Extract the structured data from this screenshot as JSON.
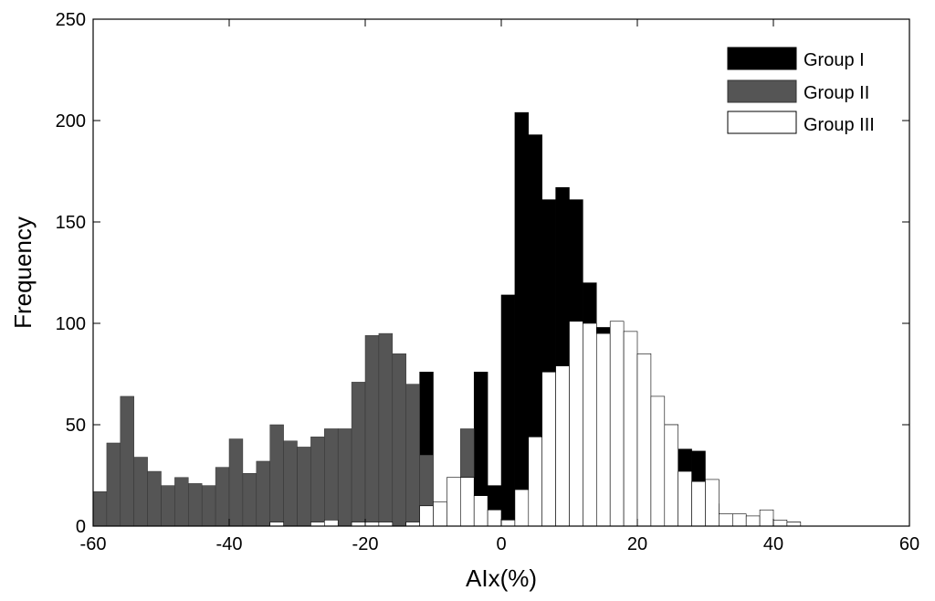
{
  "chart_data": {
    "type": "bar",
    "title": "",
    "xlabel": "AIx(%)",
    "ylabel": "Frequency",
    "xlim": [
      -60,
      60
    ],
    "ylim": [
      0,
      250
    ],
    "xticks": [
      "-60",
      "-40",
      "-20",
      "0",
      "20",
      "40",
      "60"
    ],
    "yticks": [
      "0",
      "50",
      "100",
      "150",
      "200",
      "250"
    ],
    "bin_width": 2,
    "bin_centers": [
      -59,
      -57,
      -55,
      -53,
      -51,
      -49,
      -47,
      -45,
      -43,
      -41,
      -39,
      -37,
      -35,
      -33,
      -31,
      -29,
      -27,
      -25,
      -23,
      -21,
      -19,
      -17,
      -15,
      -13,
      -11,
      -9,
      -7,
      -5,
      -3,
      -1,
      1,
      3,
      5,
      7,
      9,
      11,
      13,
      15,
      17,
      19,
      21,
      23,
      25,
      27,
      29,
      31,
      33,
      35,
      37,
      39,
      41,
      43,
      45,
      47,
      49,
      51,
      53,
      55,
      57,
      59
    ],
    "legend_position": "top-right",
    "grid": false,
    "series": [
      {
        "name": "Group I",
        "color": "#000000",
        "values": [
          0,
          0,
          0,
          0,
          0,
          0,
          0,
          0,
          0,
          0,
          0,
          0,
          0,
          0,
          0,
          0,
          0,
          0,
          0,
          0,
          0,
          56,
          55,
          47,
          76,
          0,
          0,
          0,
          76,
          20,
          114,
          204,
          193,
          161,
          167,
          161,
          120,
          98,
          72,
          67,
          59,
          49,
          50,
          38,
          37,
          11,
          4,
          2,
          0,
          0,
          0,
          2,
          0,
          0,
          0,
          0,
          0,
          0,
          0,
          0
        ]
      },
      {
        "name": "Group II",
        "color": "#555555",
        "values": [
          17,
          41,
          64,
          34,
          27,
          20,
          24,
          21,
          20,
          29,
          43,
          26,
          32,
          50,
          42,
          39,
          44,
          48,
          48,
          71,
          94,
          95,
          85,
          70,
          35,
          4,
          1,
          48,
          0,
          0,
          0,
          0,
          0,
          0,
          0,
          0,
          0,
          0,
          0,
          0,
          0,
          0,
          0,
          0,
          0,
          0,
          0,
          0,
          0,
          0,
          0,
          0,
          0,
          0,
          0,
          0,
          0,
          0,
          0,
          0
        ]
      },
      {
        "name": "Group III",
        "color": "#ffffff",
        "values": [
          0,
          0,
          0,
          0,
          0,
          0,
          0,
          0,
          0,
          0,
          0,
          0,
          0,
          2,
          0,
          0,
          2,
          3,
          0,
          2,
          2,
          2,
          0,
          2,
          10,
          12,
          24,
          24,
          15,
          8,
          3,
          18,
          44,
          76,
          79,
          101,
          100,
          95,
          101,
          96,
          85,
          64,
          50,
          27,
          22,
          23,
          6,
          6,
          5,
          8,
          3,
          2,
          0,
          0,
          0,
          0,
          0,
          0,
          0,
          0
        ]
      }
    ]
  }
}
